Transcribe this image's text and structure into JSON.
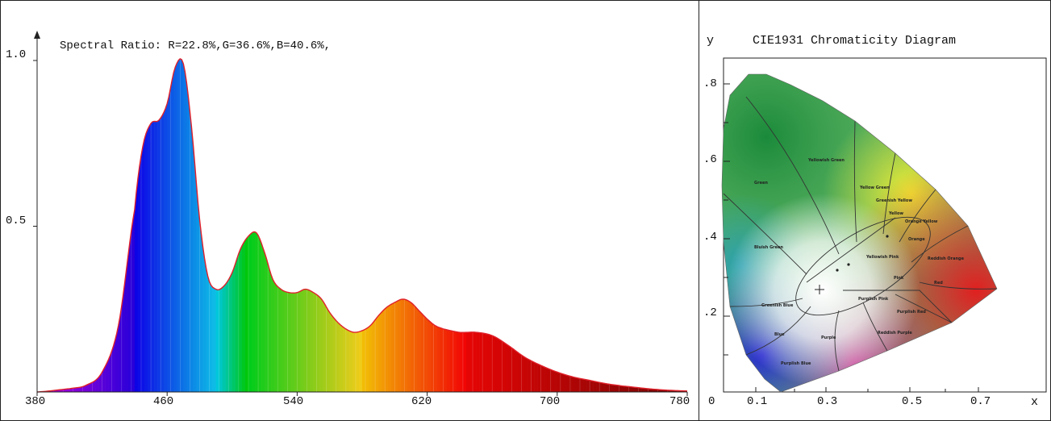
{
  "chart_data": [
    {
      "type": "area",
      "title": "Spectral Ratio:  R=22.8%,G=36.6%,B=40.6%,",
      "xlabel": "",
      "ylabel": "",
      "xlim": [
        380,
        780
      ],
      "ylim": [
        0,
        1.0
      ],
      "x_ticks": [
        "380",
        "460",
        "540",
        "620",
        "700",
        "780"
      ],
      "y_ticks": [
        "1.0",
        "0.5"
      ],
      "series": [
        {
          "x": [
            380,
            400,
            410,
            420,
            430,
            440,
            445,
            450,
            455,
            460,
            465,
            470,
            475,
            480,
            485,
            490,
            495,
            500,
            505,
            510,
            515,
            520,
            525,
            530,
            535,
            540,
            545,
            550,
            555,
            560,
            565,
            570,
            575,
            580,
            585,
            590,
            595,
            600,
            605,
            610,
            615,
            620,
            625,
            630,
            640,
            650,
            660,
            670,
            680,
            690,
            700,
            710,
            720,
            730,
            740,
            760,
            780
          ],
          "y": [
            0.0,
            0.01,
            0.02,
            0.06,
            0.2,
            0.55,
            0.74,
            0.81,
            0.82,
            0.87,
            0.98,
            0.99,
            0.8,
            0.52,
            0.35,
            0.31,
            0.32,
            0.36,
            0.43,
            0.47,
            0.48,
            0.42,
            0.34,
            0.31,
            0.3,
            0.3,
            0.31,
            0.3,
            0.28,
            0.24,
            0.21,
            0.19,
            0.18,
            0.185,
            0.2,
            0.23,
            0.255,
            0.27,
            0.28,
            0.27,
            0.245,
            0.22,
            0.2,
            0.19,
            0.18,
            0.18,
            0.17,
            0.14,
            0.105,
            0.08,
            0.06,
            0.045,
            0.035,
            0.025,
            0.018,
            0.008,
            0.003
          ]
        }
      ],
      "colors": {
        "outline": "#e0202a"
      }
    },
    {
      "type": "diagram",
      "title": "CIE1931 Chromaticity Diagram",
      "xlabel": "x",
      "ylabel": "y",
      "x_ticks": [
        "0",
        "0.1",
        "0.3",
        "0.5",
        "0.7"
      ],
      "y_ticks": [
        ".8",
        ".6",
        ".4",
        ".2"
      ],
      "regions": [
        "Green",
        "Yellowish Green",
        "Yellow Green",
        "Greenish Yellow",
        "Yellow",
        "Orange Yellow",
        "Orange",
        "Reddish Orange",
        "Red",
        "Purplish Red",
        "Reddish Purple",
        "Purple",
        "Purplish Pink",
        "Pink",
        "Yellowish Pink",
        "Bluish Green",
        "Greenish Blue",
        "Blue",
        "Purplish Blue"
      ]
    }
  ]
}
